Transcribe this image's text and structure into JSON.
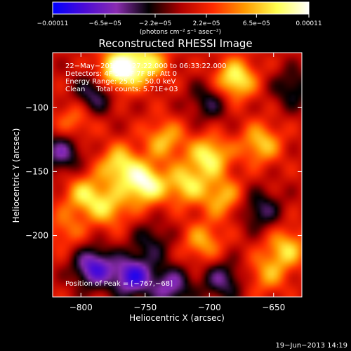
{
  "chart_data": {
    "type": "heatmap",
    "title": "Reconstructed RHESSI Image",
    "xlabel": "Heliocentric X (arcsec)",
    "ylabel": "Heliocentric Y (arcsec)",
    "xlim": [
      -822,
      -628
    ],
    "ylim": [
      -248,
      -57
    ],
    "xticks": [
      -800,
      -750,
      -700,
      -650
    ],
    "xtick_labels": [
      "−800",
      "−750",
      "−700",
      "−650"
    ],
    "yticks": [
      -100,
      -150,
      -200
    ],
    "ytick_labels": [
      "−100",
      "−150",
      "−200"
    ],
    "colorbar": {
      "min": -0.00011,
      "max": 0.00011,
      "tick_values": [
        -0.00011,
        -6.5e-05,
        -2.2e-05,
        2.2e-05,
        6.5e-05,
        0.00011
      ],
      "tick_labels": [
        "−0.00011",
        "−6.5e−05",
        "−2.2e−05",
        "2.2e−05",
        "6.5e−05",
        "0.00011"
      ],
      "unit_label": "(photons cm⁻² s⁻¹ asec⁻²)",
      "colors": [
        "#0000ff",
        "#4c0bd6",
        "#8a2cb0",
        "#000000",
        "#b00000",
        "#ff2a00",
        "#ff9a00",
        "#ffff50",
        "#ffffff"
      ]
    },
    "annotations": {
      "line1": "22−May−2013 06:27:22.000 to 06:33:22.000",
      "line2": "Detectors: 4F 5F 6F 7F 8F, Att 0",
      "line3": "Energy Range: 25.0 − 50.0 keV",
      "line4": "Clean     Total counts: 5.71E+03",
      "peak": "Position of Peak = [−767,−68]"
    },
    "timestamp": "19−Jun−2013 14:19",
    "sources": [
      {
        "x": -770,
        "y": -70,
        "amp": 1.0
      },
      {
        "x": -748,
        "y": -65,
        "amp": 0.6
      },
      {
        "x": -680,
        "y": -78,
        "amp": 0.75
      },
      {
        "x": -805,
        "y": -110,
        "amp": 0.35
      },
      {
        "x": -735,
        "y": -125,
        "amp": 0.5
      },
      {
        "x": -700,
        "y": -138,
        "amp": 0.7
      },
      {
        "x": -660,
        "y": -128,
        "amp": 0.55
      },
      {
        "x": -770,
        "y": -145,
        "amp": 0.65
      },
      {
        "x": -750,
        "y": -160,
        "amp": 0.85
      },
      {
        "x": -718,
        "y": -160,
        "amp": 0.6
      },
      {
        "x": -797,
        "y": -168,
        "amp": 0.55
      },
      {
        "x": -778,
        "y": -178,
        "amp": 0.5
      },
      {
        "x": -690,
        "y": -170,
        "amp": 0.5
      },
      {
        "x": -705,
        "y": -205,
        "amp": 0.45
      },
      {
        "x": -640,
        "y": -210,
        "amp": 0.55
      },
      {
        "x": -655,
        "y": -230,
        "amp": 0.4
      },
      {
        "x": -812,
        "y": -195,
        "amp": 0.3
      },
      {
        "x": -790,
        "y": -225,
        "amp": -0.8
      },
      {
        "x": -760,
        "y": -232,
        "amp": -0.85
      },
      {
        "x": -730,
        "y": -240,
        "amp": -0.6
      },
      {
        "x": -815,
        "y": -135,
        "amp": -0.55
      },
      {
        "x": -790,
        "y": -90,
        "amp": -0.5
      },
      {
        "x": -660,
        "y": -180,
        "amp": -0.45
      },
      {
        "x": -700,
        "y": -95,
        "amp": -0.4
      },
      {
        "x": -690,
        "y": -235,
        "amp": -0.5
      },
      {
        "x": -635,
        "y": -85,
        "amp": -0.4
      },
      {
        "x": -745,
        "y": -205,
        "amp": -0.35
      }
    ]
  }
}
